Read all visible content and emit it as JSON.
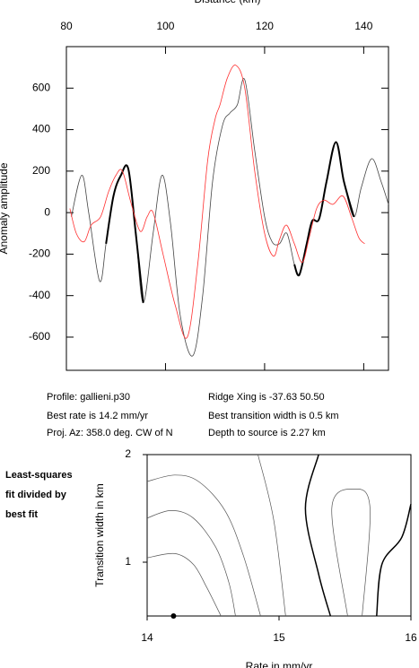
{
  "chart_data": [
    {
      "type": "line",
      "xlabel": "Distance (km)",
      "ylabel": "Anomaly amplitude",
      "xlim": [
        80,
        145
      ],
      "xticks": [
        80,
        100,
        120,
        140
      ],
      "ylim": [
        -760,
        800
      ],
      "yticks": [
        -600,
        -400,
        -200,
        0,
        200,
        400,
        600
      ],
      "series": [
        {
          "color": "#444444",
          "line_width": 0.8,
          "x": [
            81,
            83.1,
            84.5,
            86.7,
            88,
            89.5,
            91,
            92.5,
            94,
            95.5,
            97.5,
            99.3,
            101,
            103,
            105.5,
            107.5,
            109.5,
            111.5,
            113,
            114.5,
            116,
            118,
            120,
            121.5,
            123,
            124.5,
            126,
            127,
            128.5,
            129.6,
            131,
            132.5,
            134.4,
            136,
            138,
            139.5,
            141.6,
            143.5,
            145
          ],
          "values": [
            -20,
            180,
            0,
            -330,
            -150,
            80,
            180,
            210,
            -100,
            -435,
            -100,
            180,
            -50,
            -500,
            -690,
            -400,
            150,
            420,
            480,
            520,
            640,
            300,
            -20,
            -140,
            -150,
            -100,
            -250,
            -300,
            -150,
            -40,
            -30,
            150,
            340,
            150,
            -20,
            120,
            260,
            150,
            40
          ]
        },
        {
          "color": "#000000",
          "line_width": 2,
          "x": [
            88,
            89.5,
            91,
            92.5,
            94,
            95.5,
            null,
            126,
            127,
            128.5,
            129.6,
            131,
            132.5,
            134.4,
            136,
            138
          ],
          "values": [
            -150,
            80,
            180,
            210,
            -100,
            -435,
            null,
            -250,
            -300,
            -150,
            -40,
            -30,
            150,
            340,
            150,
            -20
          ]
        },
        {
          "color": "#ff3030",
          "line_width": 0.8,
          "x": [
            80.7,
            82,
            83.6,
            85,
            86.9,
            88.5,
            90,
            91.3,
            93,
            94.9,
            96.3,
            97.5,
            99.5,
            102,
            104.4,
            106.5,
            108.5,
            110,
            111,
            112.5,
            114.2,
            116,
            118,
            120,
            121.8,
            123,
            124.4,
            126,
            127.6,
            129,
            130.5,
            132,
            133.8,
            135.8,
            137.5,
            139,
            140.2
          ],
          "values": [
            20,
            -100,
            -140,
            -60,
            -20,
            100,
            180,
            200,
            50,
            -90,
            -20,
            0,
            -200,
            -450,
            -600,
            -250,
            250,
            450,
            520,
            650,
            710,
            600,
            200,
            -100,
            -210,
            -130,
            -60,
            -150,
            -240,
            -120,
            20,
            60,
            40,
            80,
            -20,
            -120,
            -150
          ]
        }
      ],
      "annotations": [
        "Profile: gallieni.p30",
        "Ridge Xing is -37.63 50.50",
        "Best rate is 14.2 mm/yr",
        "Best transition width is 0.5 km",
        "Proj. Az: 358.0 deg. CW of N",
        "Depth to source is   2.27 km"
      ]
    },
    {
      "type": "contour",
      "note": [
        "Least-squares",
        "fit divided by",
        "best fit"
      ],
      "xlabel": "Rate in mm/yr",
      "ylabel": "Transition width in km",
      "xlim": [
        14,
        16
      ],
      "xticks": [
        14,
        15,
        16
      ],
      "ylim": [
        0.5,
        2
      ],
      "yticks": [
        1,
        2
      ],
      "best": {
        "x": 14.2,
        "y": 0.5
      },
      "contours": [
        {
          "color": "#555555",
          "line_width": 0.7,
          "x": [
            14,
            14.21,
            14.35,
            14.45,
            14.56
          ],
          "y": [
            1.04,
            1.08,
            0.98,
            0.77,
            0.5
          ]
        },
        {
          "color": "#555555",
          "line_width": 0.7,
          "x": [
            14,
            14.18,
            14.35,
            14.52,
            14.62,
            14.67
          ],
          "y": [
            1.41,
            1.48,
            1.41,
            1.14,
            0.81,
            0.5
          ]
        },
        {
          "color": "#555555",
          "line_width": 0.7,
          "x": [
            14,
            14.21,
            14.39,
            14.59,
            14.73,
            14.86
          ],
          "y": [
            1.75,
            1.81,
            1.75,
            1.48,
            1.06,
            0.5
          ]
        },
        {
          "color": "#555555",
          "line_width": 0.7,
          "x": [
            14.84,
            14.96,
            15.05
          ],
          "y": [
            2,
            1.39,
            0.5
          ]
        },
        {
          "color": "#000000",
          "line_width": 1.5,
          "x": [
            15.3,
            15.2,
            15.3,
            15.39
          ],
          "y": [
            2,
            1.5,
            0.89,
            0.5
          ]
        },
        {
          "color": "#555555",
          "line_width": 0.7,
          "x": [
            15.52,
            15.4,
            15.57,
            15.69,
            15.63
          ],
          "y": [
            0.5,
            1.5,
            1.68,
            1.5,
            0.5
          ]
        },
        {
          "color": "#000000",
          "line_width": 1.5,
          "x": [
            16,
            15.93,
            15.78,
            15.74
          ],
          "y": [
            1.54,
            1.23,
            0.98,
            0.5
          ]
        }
      ]
    }
  ]
}
